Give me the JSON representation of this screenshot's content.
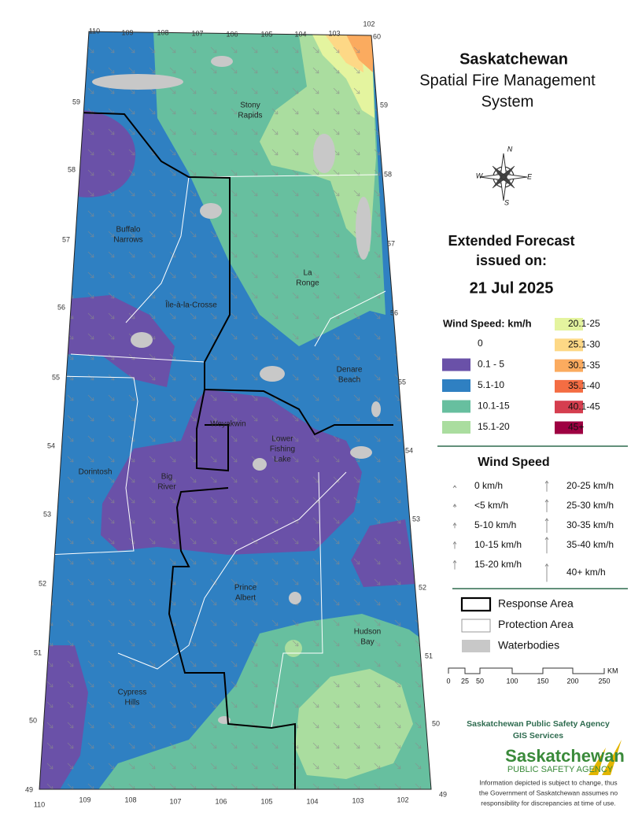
{
  "title": {
    "line1": "Saskatchewan",
    "line2": "Spatial Fire Management",
    "line3": "System"
  },
  "compass": {
    "north": "N",
    "east": "E",
    "south": "S",
    "west": "W"
  },
  "forecast": {
    "heading_line1": "Extended Forecast",
    "heading_line2": "issued on:",
    "date": "21 Jul 2025"
  },
  "wind_speed_legend": {
    "title": "Wind Speed: km/h",
    "classes": [
      {
        "label": "0",
        "color": "#ffffff"
      },
      {
        "label": "0.1 - 5",
        "color": "#6a51a8"
      },
      {
        "label": "5.1-10",
        "color": "#2f80c2"
      },
      {
        "label": "10.1-15",
        "color": "#67bf9f"
      },
      {
        "label": "15.1-20",
        "color": "#aadd9f"
      },
      {
        "label": "20.1-25",
        "color": "#e4f49f"
      },
      {
        "label": "25.1-30",
        "color": "#fdd886"
      },
      {
        "label": "30.1-35",
        "color": "#fbab5f"
      },
      {
        "label": "35.1-40",
        "color": "#f46d43"
      },
      {
        "label": "40.1-45",
        "color": "#d53e4f"
      },
      {
        "label": "45+",
        "color": "#9e0142"
      }
    ]
  },
  "arrow_legend": {
    "title": "Wind Speed",
    "items": [
      "0 km/h",
      "<5 km/h",
      "5-10 km/h",
      "10-15 km/h",
      "15-20 km/h",
      "20-25 km/h",
      "25-30 km/h",
      "30-35 km/h",
      "35-40 km/h",
      "40+ km/h"
    ]
  },
  "boundary_legend": [
    "Response Area",
    "Protection Area",
    "Waterbodies"
  ],
  "scale_bar": {
    "ticks": [
      "0",
      "25",
      "50",
      "100",
      "150",
      "200",
      "250"
    ],
    "unit": "KM"
  },
  "place_labels": [
    {
      "lines": [
        "Stony",
        "Rapids"
      ]
    },
    {
      "lines": [
        "Buffalo",
        "Narrows"
      ]
    },
    {
      "lines": [
        "La",
        "Ronge"
      ]
    },
    {
      "lines": [
        "Île-à-la-Crosse"
      ]
    },
    {
      "lines": [
        "Denare",
        "Beach"
      ]
    },
    {
      "lines": [
        "Weyakwin"
      ]
    },
    {
      "lines": [
        "Lower",
        "Fishing",
        "Lake"
      ]
    },
    {
      "lines": [
        "Dorintosh"
      ]
    },
    {
      "lines": [
        "Big",
        "River"
      ]
    },
    {
      "lines": [
        "Prince",
        "Albert"
      ]
    },
    {
      "lines": [
        "Hudson",
        "Bay"
      ]
    },
    {
      "lines": [
        "Cypress",
        "Hills"
      ]
    }
  ],
  "graticule": {
    "top": [
      "110",
      "109",
      "108",
      "107",
      "106",
      "105",
      "104",
      "103",
      "102",
      "60"
    ],
    "left": [
      "59",
      "58",
      "57",
      "56",
      "55",
      "54",
      "53",
      "52",
      "51",
      "50",
      "49"
    ],
    "right": [
      "59",
      "58",
      "57",
      "56",
      "55",
      "54",
      "53",
      "52",
      "51",
      "50",
      "49"
    ],
    "bottom": [
      "110",
      "109",
      "108",
      "107",
      "106",
      "105",
      "104",
      "103",
      "102"
    ]
  },
  "agency": {
    "line1": "Saskatchewan Public Safety Agency",
    "line2": "GIS  Services",
    "logo_name": "Saskatchewan",
    "logo_sub": "PUBLIC SAFETY AGENCY",
    "disclaimer": [
      "Information depicted is subject to change, thus",
      "the Government of Saskatchewan assumes no",
      "responsibility for discrepancies at time of use."
    ]
  }
}
